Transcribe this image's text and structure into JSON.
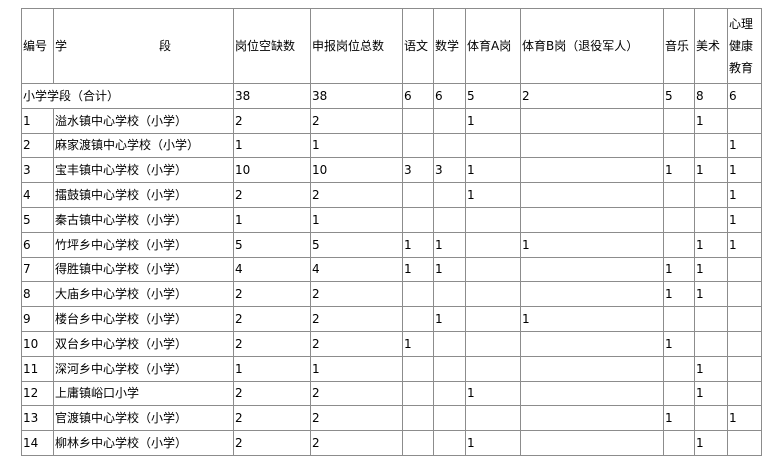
{
  "headers": {
    "no": "编号",
    "stage_a": "学",
    "stage_b": "段",
    "vacancies": "岗位空缺数",
    "declared": "申报岗位总数",
    "chinese": "语文",
    "math": "数学",
    "pe_a": "体育A岗",
    "pe_b": "体育B岗（退役军人）",
    "music": "音乐",
    "art": "美术",
    "psych": "心理健康教育"
  },
  "summary": {
    "label": "小学学段（合计）",
    "values": [
      "38",
      "38",
      "6",
      "6",
      "5",
      "2",
      "5",
      "8",
      "6"
    ]
  },
  "rows": [
    {
      "no": "1",
      "name": "溢水镇中心学校（小学）",
      "values": [
        "2",
        "2",
        "",
        "",
        "1",
        "",
        "",
        "1",
        ""
      ]
    },
    {
      "no": "2",
      "name": "麻家渡镇中心学校（小学）",
      "values": [
        "1",
        "1",
        "",
        "",
        "",
        "",
        "",
        "",
        "1"
      ]
    },
    {
      "no": "3",
      "name": "宝丰镇中心学校（小学）",
      "values": [
        "10",
        "10",
        "3",
        "3",
        "1",
        "",
        "1",
        "1",
        "1"
      ]
    },
    {
      "no": "4",
      "name": "擂鼓镇中心学校（小学）",
      "values": [
        "2",
        "2",
        "",
        "",
        "1",
        "",
        "",
        "",
        "1"
      ]
    },
    {
      "no": "5",
      "name": "秦古镇中心学校（小学）",
      "values": [
        "1",
        "1",
        "",
        "",
        "",
        "",
        "",
        "",
        "1"
      ]
    },
    {
      "no": "6",
      "name": "竹坪乡中心学校（小学）",
      "values": [
        "5",
        "5",
        "1",
        "1",
        "",
        "1",
        "",
        "1",
        "1"
      ]
    },
    {
      "no": "7",
      "name": "得胜镇中心学校（小学）",
      "values": [
        "4",
        "4",
        "1",
        "1",
        "",
        "",
        "1",
        "1",
        ""
      ]
    },
    {
      "no": "8",
      "name": "大庙乡中心学校（小学）",
      "values": [
        "2",
        "2",
        "",
        "",
        "",
        "",
        "1",
        "1",
        ""
      ]
    },
    {
      "no": "9",
      "name": "楼台乡中心学校（小学）",
      "values": [
        "2",
        "2",
        "",
        "1",
        "",
        "1",
        "",
        "",
        ""
      ]
    },
    {
      "no": "10",
      "name": "双台乡中心学校（小学）",
      "values": [
        "2",
        "2",
        "1",
        "",
        "",
        "",
        "1",
        "",
        ""
      ]
    },
    {
      "no": "11",
      "name": "深河乡中心学校（小学）",
      "values": [
        "1",
        "1",
        "",
        "",
        "",
        "",
        "",
        "1",
        ""
      ]
    },
    {
      "no": "12",
      "name": "上庸镇峪口小学",
      "values": [
        "2",
        "2",
        "",
        "",
        "1",
        "",
        "",
        "1",
        ""
      ]
    },
    {
      "no": "13",
      "name": "官渡镇中心学校（小学）",
      "values": [
        "2",
        "2",
        "",
        "",
        "",
        "",
        "1",
        "",
        "1"
      ]
    },
    {
      "no": "14",
      "name": "柳林乡中心学校（小学）",
      "values": [
        "2",
        "2",
        "",
        "",
        "1",
        "",
        "",
        "1",
        ""
      ]
    }
  ]
}
